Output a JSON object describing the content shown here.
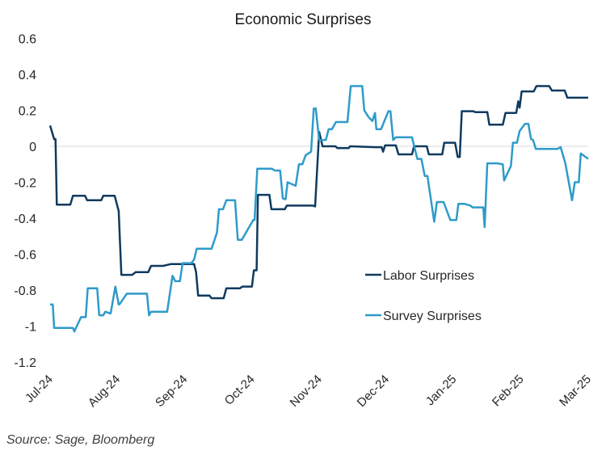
{
  "chart_data": {
    "type": "line",
    "title": "Economic Surprises",
    "xlabel": "",
    "ylabel": "",
    "ylim": [
      -1.2,
      0.6
    ],
    "yticks": [
      "0.6",
      "0.4",
      "0.2",
      "0",
      "-0.2",
      "-0.4",
      "-0.6",
      "-0.8",
      "-1",
      "-1.2"
    ],
    "ytick_values": [
      0.6,
      0.4,
      0.2,
      0,
      -0.2,
      -0.4,
      -0.6,
      -0.8,
      -1,
      -1.2
    ],
    "x_categories": [
      "Jul-24",
      "Aug-24",
      "Sep-24",
      "Oct-24",
      "Nov-24",
      "Dec-24",
      "Jan-25",
      "Feb-25",
      "Mar-25"
    ],
    "x_unit": "month index (0 = Jul-24, 8 = Mar-25)",
    "xlim": [
      0,
      8
    ],
    "grid": "zero line only",
    "legend_position": "center-right",
    "series": [
      {
        "name": "Labor Surprises",
        "color": "#0f3a5f",
        "points": [
          [
            0.0,
            0.115
          ],
          [
            0.06,
            0.04
          ],
          [
            0.08,
            0.04
          ],
          [
            0.1,
            -0.325
          ],
          [
            0.3,
            -0.325
          ],
          [
            0.34,
            -0.275
          ],
          [
            0.52,
            -0.275
          ],
          [
            0.55,
            -0.3
          ],
          [
            0.76,
            -0.3
          ],
          [
            0.79,
            -0.275
          ],
          [
            0.96,
            -0.275
          ],
          [
            1.02,
            -0.36
          ],
          [
            1.06,
            -0.715
          ],
          [
            1.22,
            -0.715
          ],
          [
            1.27,
            -0.7
          ],
          [
            1.46,
            -0.7
          ],
          [
            1.5,
            -0.665
          ],
          [
            1.68,
            -0.665
          ],
          [
            1.8,
            -0.655
          ],
          [
            2.14,
            -0.655
          ],
          [
            2.17,
            -0.7
          ],
          [
            2.2,
            -0.83
          ],
          [
            2.37,
            -0.83
          ],
          [
            2.4,
            -0.845
          ],
          [
            2.58,
            -0.845
          ],
          [
            2.62,
            -0.79
          ],
          [
            2.82,
            -0.79
          ],
          [
            2.86,
            -0.78
          ],
          [
            3.0,
            -0.78
          ],
          [
            3.03,
            -0.69
          ],
          [
            3.07,
            -0.69
          ],
          [
            3.09,
            -0.27
          ],
          [
            3.26,
            -0.27
          ],
          [
            3.29,
            -0.35
          ],
          [
            3.49,
            -0.35
          ],
          [
            3.52,
            -0.33
          ],
          [
            3.91,
            -0.33
          ],
          [
            3.94,
            -0.335
          ],
          [
            4.0,
            0.08
          ],
          [
            4.05,
            0.0
          ],
          [
            4.24,
            0.0
          ],
          [
            4.27,
            -0.01
          ],
          [
            4.44,
            -0.01
          ],
          [
            4.46,
            0.0
          ],
          [
            4.84,
            -0.005
          ],
          [
            4.93,
            -0.005
          ],
          [
            4.95,
            -0.03
          ],
          [
            4.98,
            0.005
          ],
          [
            5.14,
            0.005
          ],
          [
            5.18,
            -0.045
          ],
          [
            5.38,
            -0.045
          ],
          [
            5.41,
            0.0
          ],
          [
            5.6,
            0.0
          ],
          [
            5.63,
            -0.045
          ],
          [
            5.83,
            -0.045
          ],
          [
            5.86,
            0.02
          ],
          [
            6.02,
            0.02
          ],
          [
            6.06,
            -0.06
          ],
          [
            6.09,
            -0.06
          ],
          [
            6.12,
            0.195
          ],
          [
            6.29,
            0.195
          ],
          [
            6.32,
            0.19
          ],
          [
            6.5,
            0.19
          ],
          [
            6.53,
            0.12
          ],
          [
            6.73,
            0.12
          ],
          [
            6.77,
            0.185
          ],
          [
            6.93,
            0.185
          ],
          [
            6.96,
            0.25
          ],
          [
            6.98,
            0.215
          ],
          [
            7.01,
            0.305
          ],
          [
            7.19,
            0.305
          ],
          [
            7.23,
            0.335
          ],
          [
            7.42,
            0.335
          ],
          [
            7.46,
            0.31
          ],
          [
            7.65,
            0.31
          ],
          [
            7.69,
            0.27
          ],
          [
            8.0,
            0.27
          ]
        ]
      },
      {
        "name": "Survey Surprises",
        "color": "#2e9bc9",
        "points": [
          [
            0.0,
            -0.88
          ],
          [
            0.04,
            -0.88
          ],
          [
            0.06,
            -1.01
          ],
          [
            0.34,
            -1.01
          ],
          [
            0.36,
            -1.03
          ],
          [
            0.46,
            -0.95
          ],
          [
            0.53,
            -0.95
          ],
          [
            0.56,
            -0.79
          ],
          [
            0.7,
            -0.79
          ],
          [
            0.73,
            -0.94
          ],
          [
            0.79,
            -0.94
          ],
          [
            0.82,
            -0.92
          ],
          [
            0.9,
            -0.93
          ],
          [
            0.97,
            -0.78
          ],
          [
            1.02,
            -0.88
          ],
          [
            1.04,
            -0.875
          ],
          [
            1.14,
            -0.82
          ],
          [
            1.44,
            -0.82
          ],
          [
            1.47,
            -0.94
          ],
          [
            1.5,
            -0.92
          ],
          [
            1.74,
            -0.92
          ],
          [
            1.82,
            -0.72
          ],
          [
            1.86,
            -0.75
          ],
          [
            1.93,
            -0.75
          ],
          [
            1.97,
            -0.65
          ],
          [
            2.1,
            -0.65
          ],
          [
            2.14,
            -0.63
          ],
          [
            2.18,
            -0.57
          ],
          [
            2.4,
            -0.57
          ],
          [
            2.48,
            -0.48
          ],
          [
            2.51,
            -0.35
          ],
          [
            2.57,
            -0.35
          ],
          [
            2.62,
            -0.3
          ],
          [
            2.75,
            -0.3
          ],
          [
            2.79,
            -0.52
          ],
          [
            2.85,
            -0.52
          ],
          [
            3.02,
            -0.41
          ],
          [
            3.04,
            -0.41
          ],
          [
            3.08,
            -0.125
          ],
          [
            3.3,
            -0.125
          ],
          [
            3.34,
            -0.135
          ],
          [
            3.42,
            -0.135
          ],
          [
            3.46,
            -0.29
          ],
          [
            3.5,
            -0.295
          ],
          [
            3.53,
            -0.2
          ],
          [
            3.65,
            -0.22
          ],
          [
            3.7,
            -0.1
          ],
          [
            3.75,
            -0.1
          ],
          [
            3.8,
            -0.05
          ],
          [
            3.88,
            -0.03
          ],
          [
            3.92,
            0.21
          ],
          [
            3.95,
            0.21
          ],
          [
            4.0,
            0.035
          ],
          [
            4.1,
            0.035
          ],
          [
            4.14,
            0.095
          ],
          [
            4.19,
            0.095
          ],
          [
            4.25,
            0.135
          ],
          [
            4.42,
            0.135
          ],
          [
            4.47,
            0.335
          ],
          [
            4.64,
            0.335
          ],
          [
            4.67,
            0.2
          ],
          [
            4.73,
            0.165
          ],
          [
            4.79,
            0.14
          ],
          [
            4.83,
            0.185
          ],
          [
            4.85,
            0.095
          ],
          [
            4.92,
            0.095
          ],
          [
            5.03,
            0.195
          ],
          [
            5.06,
            0.195
          ],
          [
            5.1,
            0.035
          ],
          [
            5.14,
            0.05
          ],
          [
            5.38,
            0.05
          ],
          [
            5.46,
            -0.07
          ],
          [
            5.52,
            -0.07
          ],
          [
            5.57,
            -0.165
          ],
          [
            5.61,
            -0.165
          ],
          [
            5.71,
            -0.42
          ],
          [
            5.75,
            -0.31
          ],
          [
            5.85,
            -0.31
          ],
          [
            5.95,
            -0.41
          ],
          [
            6.04,
            -0.41
          ],
          [
            6.07,
            -0.32
          ],
          [
            6.16,
            -0.32
          ],
          [
            6.25,
            -0.33
          ],
          [
            6.28,
            -0.34
          ],
          [
            6.44,
            -0.34
          ],
          [
            6.46,
            -0.45
          ],
          [
            6.5,
            -0.095
          ],
          [
            6.65,
            -0.095
          ],
          [
            6.73,
            -0.1
          ],
          [
            6.75,
            -0.19
          ],
          [
            6.85,
            -0.11
          ],
          [
            6.88,
            0.02
          ],
          [
            6.94,
            0.02
          ],
          [
            6.98,
            0.085
          ],
          [
            7.06,
            0.125
          ],
          [
            7.11,
            0.125
          ],
          [
            7.15,
            0.04
          ],
          [
            7.18,
            0.035
          ],
          [
            7.22,
            -0.015
          ],
          [
            7.54,
            -0.015
          ],
          [
            7.59,
            -0.005
          ],
          [
            7.66,
            -0.095
          ],
          [
            7.76,
            -0.3
          ],
          [
            7.8,
            -0.2
          ],
          [
            7.86,
            -0.2
          ],
          [
            7.89,
            -0.04
          ],
          [
            8.0,
            -0.07
          ]
        ]
      }
    ],
    "source": "Source: Sage, Bloomberg"
  }
}
